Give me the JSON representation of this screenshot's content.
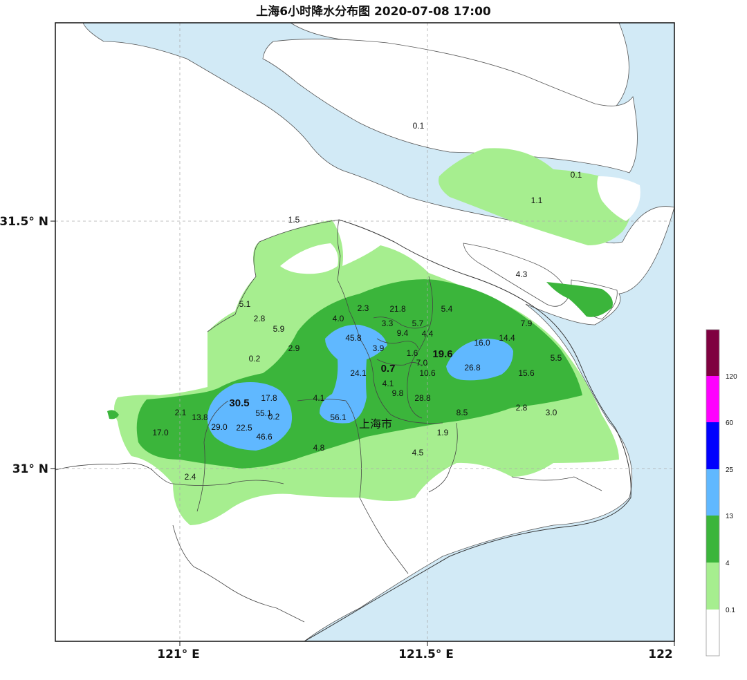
{
  "title": "上海6小时降水分布图 2020-07-08 17:00",
  "axes": {
    "x_ticks": [
      "121° E",
      "121.5° E",
      "122"
    ],
    "y_ticks": [
      "31.5° N",
      "31° N"
    ]
  },
  "city_label": "上海市",
  "colors": {
    "water": "#d2eaf6",
    "land": "#ffffff",
    "rain_0_1_4": "#a6ee8f",
    "rain_4_13": "#3bb53b",
    "rain_13_25": "#60b8ff",
    "rain_25_60": "#0000fe",
    "rain_60_120": "#fe00fe",
    "rain_120_plus": "#7f0040",
    "grid": "#aaaaaa"
  },
  "legend": {
    "thresholds": [
      "0.1",
      "4",
      "13",
      "25",
      "60",
      "120"
    ]
  },
  "values": [
    {
      "text": "0.1",
      "big": false
    },
    {
      "text": "0.1",
      "big": false
    },
    {
      "text": "1.1",
      "big": false
    },
    {
      "text": "1.5",
      "big": false
    },
    {
      "text": "4.3",
      "big": false
    },
    {
      "text": "5.1",
      "big": false
    },
    {
      "text": "2.8",
      "big": false
    },
    {
      "text": "5.9",
      "big": false
    },
    {
      "text": "4.0",
      "big": false
    },
    {
      "text": "2.3",
      "big": false
    },
    {
      "text": "21.8",
      "big": false
    },
    {
      "text": "5.4",
      "big": false
    },
    {
      "text": "3.3",
      "big": false
    },
    {
      "text": "5.7",
      "big": false
    },
    {
      "text": "45.8",
      "big": false
    },
    {
      "text": "9.4",
      "big": false
    },
    {
      "text": "4.4",
      "big": false
    },
    {
      "text": "7.9",
      "big": false
    },
    {
      "text": "16.0",
      "big": false
    },
    {
      "text": "14.4",
      "big": false
    },
    {
      "text": "2.9",
      "big": false
    },
    {
      "text": "3.9",
      "big": false
    },
    {
      "text": "1.6",
      "big": false
    },
    {
      "text": "19.6",
      "big": true
    },
    {
      "text": "0.2",
      "big": false
    },
    {
      "text": "7.0",
      "big": false
    },
    {
      "text": "5.5",
      "big": false
    },
    {
      "text": "0.7",
      "big": true
    },
    {
      "text": "26.8",
      "big": false
    },
    {
      "text": "24.1",
      "big": false
    },
    {
      "text": "10.6",
      "big": false
    },
    {
      "text": "15.6",
      "big": false
    },
    {
      "text": "4.1",
      "big": false
    },
    {
      "text": "9.8",
      "big": false
    },
    {
      "text": "30.5",
      "big": true
    },
    {
      "text": "17.8",
      "big": false
    },
    {
      "text": "4.1",
      "big": false
    },
    {
      "text": "28.8",
      "big": false
    },
    {
      "text": "2.8",
      "big": false
    },
    {
      "text": "3.0",
      "big": false
    },
    {
      "text": "2.1",
      "big": false
    },
    {
      "text": "55.1",
      "big": false
    },
    {
      "text": "13.8",
      "big": false
    },
    {
      "text": "0.2",
      "big": false
    },
    {
      "text": "56.1",
      "big": false
    },
    {
      "text": "8.5",
      "big": false
    },
    {
      "text": "29.0",
      "big": false
    },
    {
      "text": "22.5",
      "big": false
    },
    {
      "text": "17.0",
      "big": false
    },
    {
      "text": "46.6",
      "big": false
    },
    {
      "text": "1.9",
      "big": false
    },
    {
      "text": "4.8",
      "big": false
    },
    {
      "text": "4.5",
      "big": false
    },
    {
      "text": "2.4",
      "big": false
    }
  ]
}
